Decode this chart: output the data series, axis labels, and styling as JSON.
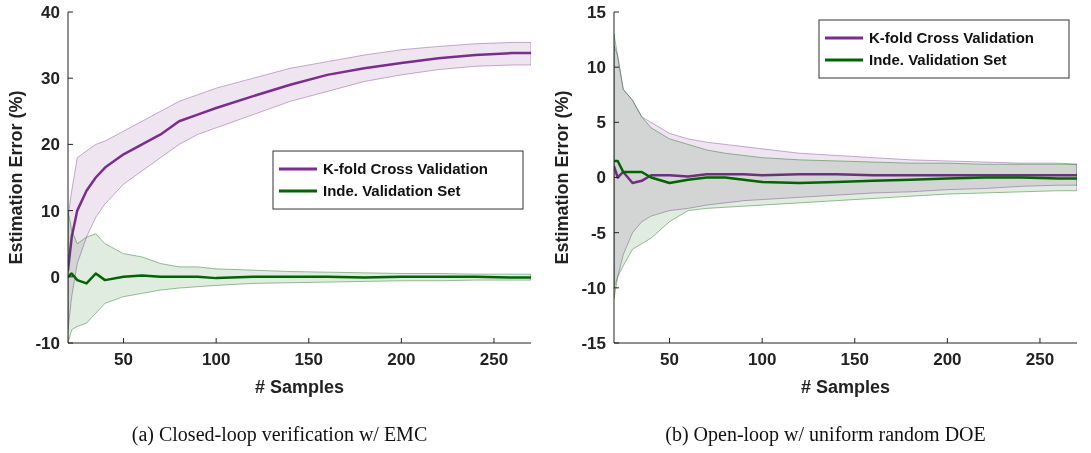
{
  "chart_data": [
    {
      "type": "line",
      "title": "(a) Closed-loop verification w/ EMC",
      "xlabel": "# Samples",
      "ylabel": "Estimation Error (%)",
      "xlim": [
        20,
        270
      ],
      "xticks": [
        50,
        100,
        150,
        200,
        250
      ],
      "ylim": [
        -10,
        40
      ],
      "yticks": [
        -10,
        0,
        10,
        20,
        30,
        40
      ],
      "grid": false,
      "legend": "right",
      "line_style": "solid",
      "x": [
        20,
        22,
        25,
        30,
        35,
        40,
        50,
        60,
        70,
        80,
        90,
        100,
        120,
        140,
        160,
        180,
        200,
        220,
        240,
        260,
        270
      ],
      "series": [
        {
          "name": "K-fold Cross Validation",
          "color": "#7b2d8e",
          "values": [
            1,
            6,
            10,
            13,
            15,
            16.5,
            18.5,
            20,
            21.5,
            23.5,
            24.5,
            25.5,
            27.3,
            29,
            30.5,
            31.5,
            32.3,
            33,
            33.5,
            33.8,
            33.8
          ],
          "upper": [
            9,
            13,
            18,
            19,
            20,
            20.5,
            22,
            23.5,
            25,
            26.5,
            27.5,
            28.5,
            30,
            31.5,
            32.5,
            33.5,
            34.3,
            34.8,
            35.2,
            35.4,
            35.4
          ],
          "lower": [
            -8,
            -3,
            2,
            6,
            9,
            11,
            14,
            16,
            18,
            20,
            21.5,
            22.5,
            24.5,
            26.5,
            28,
            29.5,
            30.5,
            31.3,
            31.8,
            32,
            32
          ]
        },
        {
          "name": "Inde. Validation Set",
          "color": "#006400",
          "values": [
            0,
            0.5,
            -0.5,
            -1,
            0.5,
            -0.5,
            0,
            0.2,
            0,
            0,
            0,
            -0.2,
            0,
            0,
            0,
            -0.1,
            0,
            0,
            0,
            -0.1,
            -0.1
          ],
          "upper": [
            10,
            7,
            5,
            6,
            6.5,
            5,
            3.5,
            3,
            2,
            1.5,
            1.5,
            1.2,
            1,
            0.8,
            0.7,
            0.6,
            0.5,
            0.5,
            0.4,
            0.4,
            0.4
          ],
          "lower": [
            -10,
            -8,
            -7.5,
            -7,
            -5.5,
            -4,
            -3,
            -2.5,
            -2,
            -1.7,
            -1.5,
            -1.3,
            -1,
            -0.9,
            -0.8,
            -0.7,
            -0.6,
            -0.6,
            -0.5,
            -0.5,
            -0.5
          ]
        }
      ]
    },
    {
      "type": "line",
      "title": "(b) Open-loop w/ uniform random DOE",
      "xlabel": "# Samples",
      "ylabel": "Estimation Error (%)",
      "xlim": [
        20,
        270
      ],
      "xticks": [
        50,
        100,
        150,
        200,
        250
      ],
      "ylim": [
        -15,
        15
      ],
      "yticks": [
        -15,
        -10,
        -5,
        0,
        5,
        10,
        15
      ],
      "grid": false,
      "legend": "top right",
      "line_style": "solid",
      "x": [
        20,
        22,
        25,
        30,
        35,
        40,
        50,
        60,
        70,
        80,
        90,
        100,
        120,
        140,
        160,
        180,
        200,
        220,
        240,
        260,
        270
      ],
      "series": [
        {
          "name": "K-fold Cross Validation",
          "color": "#7b2d8e",
          "values": [
            1,
            0,
            0.5,
            -0.5,
            -0.3,
            0.2,
            0.2,
            0.1,
            0.3,
            0.3,
            0.3,
            0.2,
            0.3,
            0.3,
            0.2,
            0.2,
            0.2,
            0.2,
            0.2,
            0.2,
            0.2
          ],
          "upper": [
            12,
            11,
            8,
            7,
            5.5,
            5,
            4,
            3.5,
            3.2,
            3,
            2.8,
            2.6,
            2.2,
            2,
            1.8,
            1.6,
            1.5,
            1.4,
            1.3,
            1.3,
            1.2
          ],
          "lower": [
            -10,
            -9,
            -7,
            -5,
            -4,
            -3.5,
            -3,
            -2.8,
            -2.5,
            -2.3,
            -2.1,
            -2,
            -1.8,
            -1.6,
            -1.4,
            -1.3,
            -1.1,
            -1,
            -0.8,
            -0.7,
            -0.7
          ]
        },
        {
          "name": "Inde. Validation Set",
          "color": "#006400",
          "values": [
            1.5,
            1.5,
            0.5,
            0.5,
            0.5,
            0,
            -0.5,
            -0.2,
            0,
            0,
            -0.2,
            -0.4,
            -0.5,
            -0.4,
            -0.3,
            -0.2,
            -0.1,
            0,
            0,
            -0.1,
            -0.1
          ],
          "upper": [
            13,
            11,
            8,
            7,
            5.5,
            4.5,
            3.5,
            3,
            2.5,
            2.2,
            2,
            1.8,
            1.6,
            1.5,
            1.4,
            1.3,
            1.3,
            1.2,
            1.2,
            1.2,
            1.2
          ],
          "lower": [
            -11,
            -9,
            -8,
            -6.5,
            -6,
            -5.5,
            -4,
            -3,
            -2.8,
            -2.7,
            -2.6,
            -2.5,
            -2.3,
            -2.1,
            -1.9,
            -1.7,
            -1.5,
            -1.4,
            -1.3,
            -1.2,
            -1.2
          ]
        }
      ]
    }
  ]
}
